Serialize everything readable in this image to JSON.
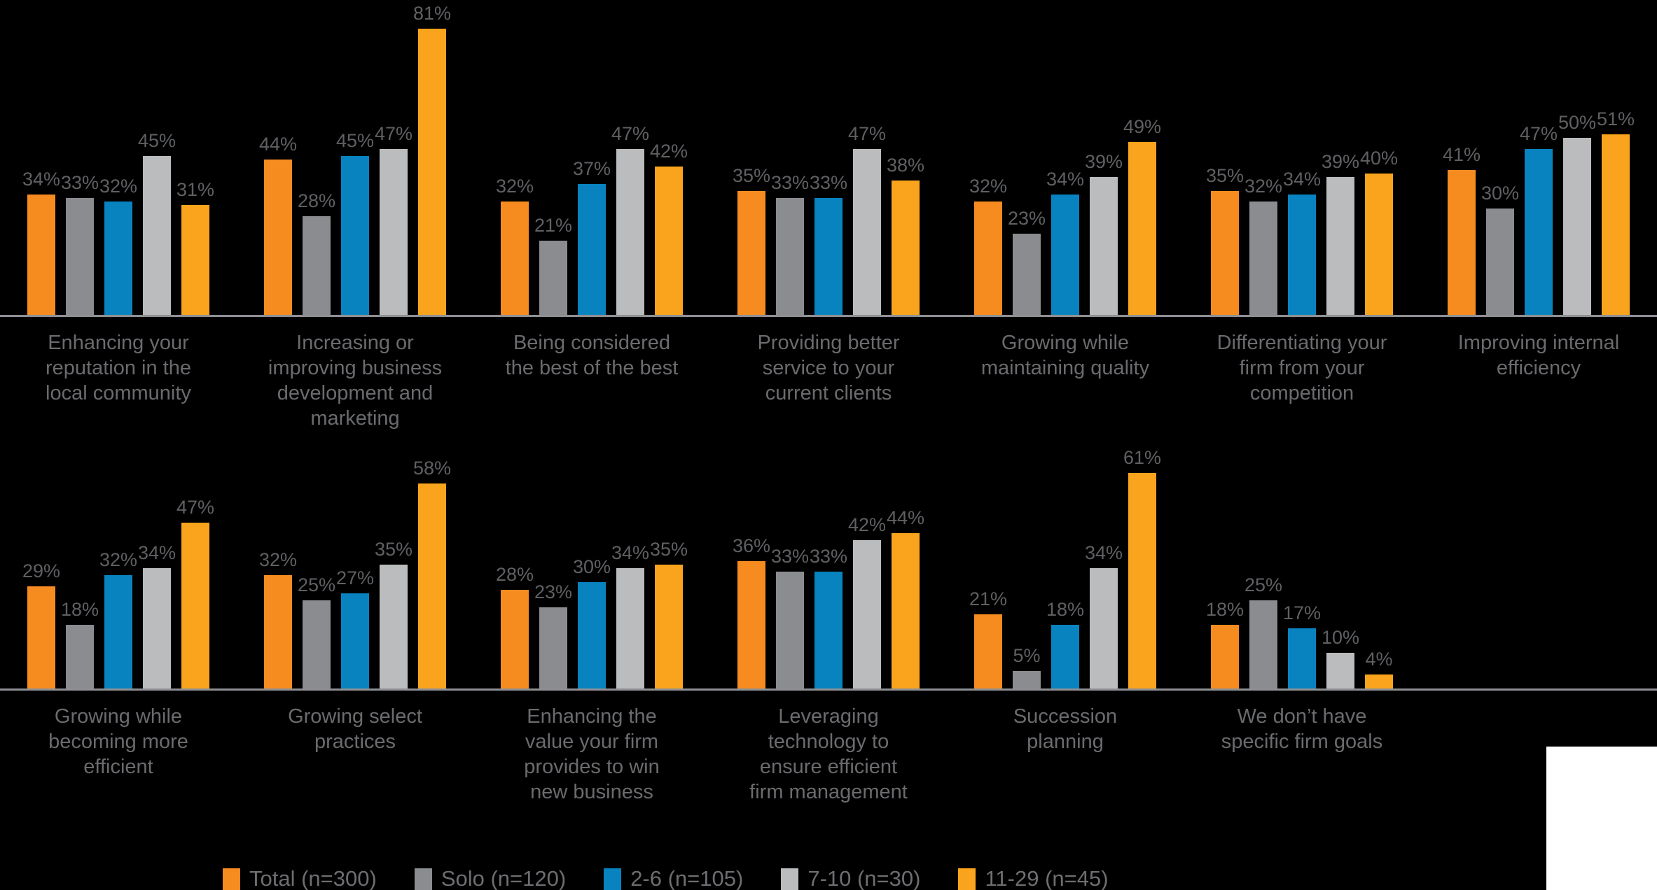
{
  "colors": {
    "background": "#000000",
    "axis_line": "#8E9093",
    "percent_label": "#5F6063",
    "category_label": "#6A6B6E",
    "legend_label": "#6D6E71",
    "corner_box": "#FFFFFF",
    "total_orange": "#F68B1F",
    "solo_gray": "#8A8C8F",
    "size_2_6_blue": "#0883C0",
    "size_7_10_lightgray": "#BABCBE",
    "size_11_29_amber": "#F9A41C"
  },
  "chart_data": {
    "type": "bar",
    "unit": "%",
    "value_range": [
      0,
      100
    ],
    "grid": "off",
    "legend_position": "bottom",
    "series": [
      {
        "name": "Total (n=300)",
        "color": "#F68B1F"
      },
      {
        "name": "Solo (n=120)",
        "color": "#8A8C8F"
      },
      {
        "name": "2-6 (n=105)",
        "color": "#0883C0"
      },
      {
        "name": "7-10 (n=30)",
        "color": "#BABCBE"
      },
      {
        "name": "11-29 (n=45)",
        "color": "#F9A41C"
      }
    ],
    "rows": [
      {
        "groups": [
          {
            "label": "Enhancing your\nreputation in the\nlocal community",
            "values": [
              34,
              33,
              32,
              45,
              31
            ]
          },
          {
            "label": "Increasing or\nimproving business\ndevelopment and\nmarketing",
            "values": [
              44,
              28,
              45,
              47,
              81
            ]
          },
          {
            "label": "Being considered\nthe best of the best",
            "values": [
              32,
              21,
              37,
              47,
              42
            ]
          },
          {
            "label": "Providing better\nservice to your\ncurrent clients",
            "values": [
              35,
              33,
              33,
              47,
              38
            ]
          },
          {
            "label": "Growing while\nmaintaining quality",
            "values": [
              32,
              23,
              34,
              39,
              49
            ]
          },
          {
            "label": "Differentiating your\nfirm from your\ncompetition",
            "values": [
              35,
              32,
              34,
              39,
              40
            ]
          },
          {
            "label": "Improving internal\nefficiency",
            "values": [
              41,
              30,
              47,
              50,
              51
            ]
          }
        ]
      },
      {
        "groups": [
          {
            "label": "Growing while\nbecoming more\nefficient",
            "values": [
              29,
              18,
              32,
              34,
              47
            ]
          },
          {
            "label": "Growing select\npractices",
            "values": [
              32,
              25,
              27,
              35,
              58
            ]
          },
          {
            "label": "Enhancing the\nvalue your firm\nprovides to win\nnew business",
            "values": [
              28,
              23,
              30,
              34,
              35
            ]
          },
          {
            "label": "Leveraging\ntechnology to\nensure efficient\nfirm management",
            "values": [
              36,
              33,
              33,
              42,
              44
            ]
          },
          {
            "label": "Succession\nplanning",
            "values": [
              21,
              5,
              18,
              34,
              61
            ]
          },
          {
            "label": "We don’t have\nspecific firm goals",
            "values": [
              18,
              25,
              17,
              10,
              4
            ]
          }
        ]
      }
    ]
  }
}
